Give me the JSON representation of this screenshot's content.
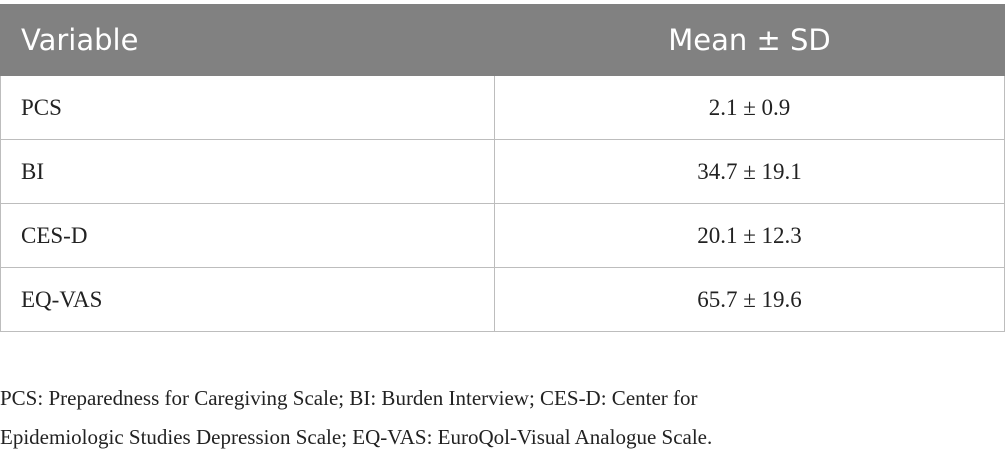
{
  "table": {
    "header": [
      "Variable",
      "Mean ± SD"
    ],
    "rows": [
      [
        "PCS",
        "2.1 ± 0.9"
      ],
      [
        "BI",
        "34.7 ± 19.1"
      ],
      [
        "CES-D",
        "20.1 ± 12.3"
      ],
      [
        "EQ-VAS",
        "65.7 ± 19.6"
      ]
    ]
  },
  "footnote": [
    "PCS: Preparedness for Caregiving Scale; BI: Burden Interview; CES-D: Center for",
    "Epidemiologic Studies Depression Scale; EQ-VAS: EuroQol-Visual Analogue Scale."
  ]
}
